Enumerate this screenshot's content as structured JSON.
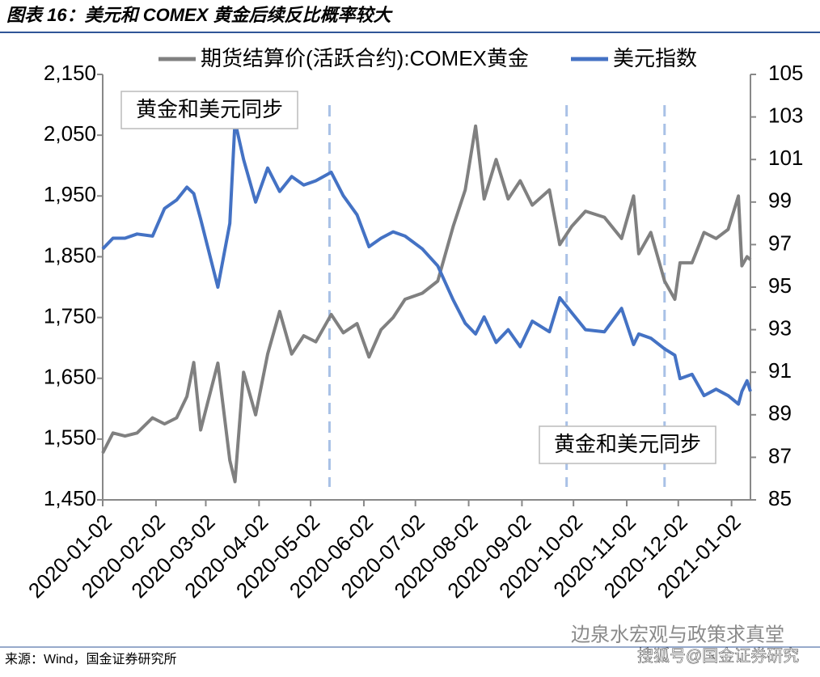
{
  "chart_data": {
    "type": "line",
    "title": "图表 16：美元和 COMEX 黄金后续反比概率较大",
    "source": "来源：Wind，国金证券研究所",
    "watermarks": [
      "边泉水宏观与政策求真堂",
      "搜狐号@国金证券研究"
    ],
    "annotations": [
      "黄金和美元同步",
      "黄金和美元同步"
    ],
    "vlines": [
      "2020-05-13",
      "2020-09-28",
      "2020-11-24"
    ],
    "x": [
      "2020-01-02",
      "2020-01-08",
      "2020-01-15",
      "2020-01-22",
      "2020-01-31",
      "2020-02-07",
      "2020-02-14",
      "2020-02-20",
      "2020-02-24",
      "2020-02-28",
      "2020-03-09",
      "2020-03-16",
      "2020-03-19",
      "2020-03-24",
      "2020-03-31",
      "2020-04-07",
      "2020-04-14",
      "2020-04-21",
      "2020-04-28",
      "2020-05-05",
      "2020-05-14",
      "2020-05-21",
      "2020-05-29",
      "2020-06-05",
      "2020-06-12",
      "2020-06-19",
      "2020-06-26",
      "2020-07-06",
      "2020-07-15",
      "2020-07-24",
      "2020-07-31",
      "2020-08-06",
      "2020-08-11",
      "2020-08-18",
      "2020-08-25",
      "2020-09-01",
      "2020-09-08",
      "2020-09-18",
      "2020-09-24",
      "2020-10-01",
      "2020-10-09",
      "2020-10-20",
      "2020-10-30",
      "2020-11-06",
      "2020-11-09",
      "2020-11-16",
      "2020-11-24",
      "2020-11-30",
      "2020-12-03",
      "2020-12-10",
      "2020-12-17",
      "2020-12-24",
      "2020-12-31",
      "2021-01-06",
      "2021-01-08",
      "2021-01-11",
      "2021-01-13"
    ],
    "series": [
      {
        "name": "期货结算价(活跃合约):COMEX黄金",
        "color": "#808080",
        "values": [
          1527,
          1560,
          1555,
          1560,
          1585,
          1575,
          1585,
          1620,
          1676,
          1565,
          1675,
          1515,
          1480,
          1660,
          1590,
          1690,
          1760,
          1690,
          1720,
          1710,
          1755,
          1725,
          1740,
          1685,
          1730,
          1750,
          1780,
          1790,
          1810,
          1900,
          1960,
          2065,
          1945,
          2010,
          1945,
          1975,
          1935,
          1960,
          1870,
          1900,
          1925,
          1915,
          1880,
          1950,
          1855,
          1890,
          1810,
          1780,
          1840,
          1840,
          1890,
          1880,
          1895,
          1950,
          1835,
          1850,
          1845
        ]
      },
      {
        "name": "美元指数",
        "color": "#4472c4",
        "axis": "y2",
        "values": [
          96.8,
          97.3,
          97.3,
          97.5,
          97.4,
          98.7,
          99.1,
          99.7,
          99.4,
          98.2,
          95.0,
          98.0,
          102.8,
          101.0,
          99.0,
          100.6,
          99.5,
          100.2,
          99.8,
          100.0,
          100.4,
          99.3,
          98.4,
          96.9,
          97.3,
          97.6,
          97.4,
          96.8,
          96.0,
          94.4,
          93.3,
          92.8,
          93.6,
          92.4,
          93.0,
          92.2,
          93.4,
          92.9,
          94.5,
          93.8,
          93.0,
          92.9,
          94.0,
          92.3,
          92.8,
          92.6,
          92.1,
          91.8,
          90.7,
          90.9,
          89.9,
          90.2,
          89.9,
          89.5,
          90.1,
          90.6,
          90.1
        ]
      }
    ],
    "xlim": [
      "2020-01-02",
      "2021-01-13"
    ],
    "xticks": [
      "2020-01-02",
      "2020-02-02",
      "2020-03-02",
      "2020-04-02",
      "2020-05-02",
      "2020-06-02",
      "2020-07-02",
      "2020-08-02",
      "2020-09-02",
      "2020-10-02",
      "2020-11-02",
      "2020-12-02",
      "2021-01-02"
    ],
    "ylim": [
      1450,
      2150
    ],
    "yticks": [
      {
        "value": 1450,
        "label": "1,450"
      },
      {
        "value": 1550,
        "label": "1,550"
      },
      {
        "value": 1650,
        "label": "1,650"
      },
      {
        "value": 1750,
        "label": "1,750"
      },
      {
        "value": 1850,
        "label": "1,850"
      },
      {
        "value": 1950,
        "label": "1,950"
      },
      {
        "value": 2050,
        "label": "2,050"
      },
      {
        "value": 2150,
        "label": "2,150"
      }
    ],
    "y2lim": [
      85,
      105
    ],
    "y2ticks": [
      85,
      87,
      89,
      91,
      93,
      95,
      97,
      99,
      101,
      103,
      105
    ],
    "grid": false
  }
}
